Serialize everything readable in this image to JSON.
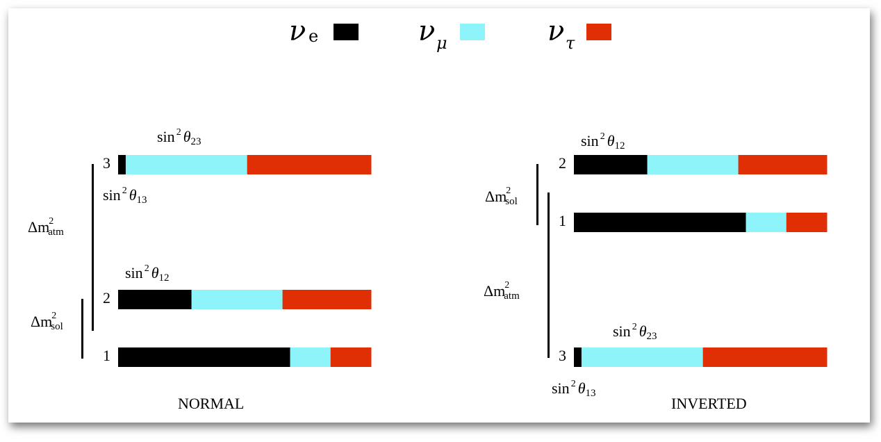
{
  "colors": {
    "nu_e": "#000000",
    "nu_mu": "#8ef4fa",
    "nu_tau": "#e02f05"
  },
  "legend": [
    {
      "symbol": "ν",
      "subscript": "e",
      "color": "#000000"
    },
    {
      "symbol": "ν",
      "subscript": "μ",
      "color": "#8ef4fa"
    },
    {
      "symbol": "ν",
      "subscript": "τ",
      "color": "#e02f05"
    }
  ],
  "normal": {
    "title": "NORMAL",
    "levels": [
      {
        "label": "3",
        "fractions": {
          "e": 0.03,
          "mu": 0.48,
          "tau": 0.49
        }
      },
      {
        "label": "2",
        "fractions": {
          "e": 0.29,
          "mu": 0.36,
          "tau": 0.35
        }
      },
      {
        "label": "1",
        "fractions": {
          "e": 0.68,
          "mu": 0.16,
          "tau": 0.16
        }
      }
    ],
    "angles": {
      "sin23": {
        "pre": "sin",
        "sup": "2",
        "theta": "θ",
        "sub": "23"
      },
      "sin13": {
        "pre": "sin",
        "sup": "2",
        "theta": "θ",
        "sub": "13"
      },
      "sin12": {
        "pre": "sin",
        "sup": "2",
        "theta": "θ",
        "sub": "12"
      }
    },
    "splittings": {
      "atm": {
        "pre": "Δm",
        "sup": "2",
        "sub": "atm"
      },
      "sol": {
        "pre": "Δm",
        "sup": "2",
        "sub": "sol"
      }
    }
  },
  "inverted": {
    "title": "INVERTED",
    "levels": [
      {
        "label": "2",
        "fractions": {
          "e": 0.29,
          "mu": 0.36,
          "tau": 0.35
        }
      },
      {
        "label": "1",
        "fractions": {
          "e": 0.68,
          "mu": 0.16,
          "tau": 0.16
        }
      },
      {
        "label": "3",
        "fractions": {
          "e": 0.03,
          "mu": 0.48,
          "tau": 0.49
        }
      }
    ],
    "angles": {
      "sin12": {
        "pre": "sin",
        "sup": "2",
        "theta": "θ",
        "sub": "12"
      },
      "sin23": {
        "pre": "sin",
        "sup": "2",
        "theta": "θ",
        "sub": "23"
      },
      "sin13": {
        "pre": "sin",
        "sup": "2",
        "theta": "θ",
        "sub": "13"
      }
    },
    "splittings": {
      "sol": {
        "pre": "Δm",
        "sup": "2",
        "sub": "sol"
      },
      "atm": {
        "pre": "Δm",
        "sup": "2",
        "sub": "atm"
      }
    }
  }
}
